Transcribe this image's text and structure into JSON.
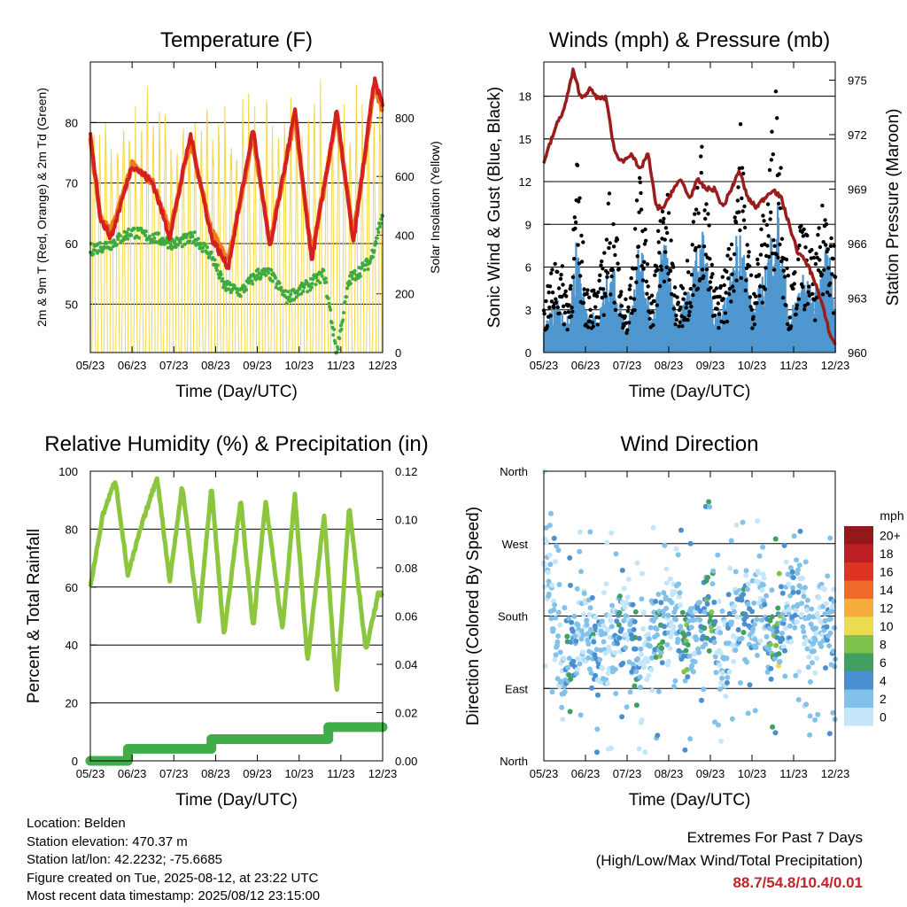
{
  "chart_data": [
    {
      "type": "line",
      "title": "Temperature (F)",
      "xlabel": "Time (Day/UTC)",
      "ylabel": "2m & 9m T (Red, Orange) & 2m Td (Green)",
      "ylabel_right": "Solar Insolation (Yellow)",
      "x_ticks": [
        "05/23",
        "06/23",
        "07/23",
        "08/23",
        "09/23",
        "10/23",
        "11/23",
        "12/23"
      ],
      "y_ticks": [
        50,
        60,
        70,
        80
      ],
      "y_right_ticks": [
        0,
        200,
        400,
        600,
        800
      ],
      "ylim": [
        42,
        90
      ],
      "y_right_lim": [
        0,
        990
      ],
      "xlim": [
        0,
        7
      ],
      "grid": true,
      "series": [
        {
          "label": "2m T",
          "color": "#d42020",
          "x": [
            0,
            0.25,
            0.5,
            1.0,
            1.5,
            1.9,
            2.4,
            2.9,
            3.3,
            3.9,
            4.3,
            4.9,
            5.3,
            5.9,
            6.3,
            6.8,
            7.0
          ],
          "y": [
            78,
            64,
            61,
            73,
            70,
            61,
            78,
            61,
            56,
            79,
            59,
            82,
            57,
            82,
            60,
            87,
            83
          ]
        },
        {
          "label": "9m T",
          "color": "#f07a1a",
          "x": [
            0,
            0.25,
            0.5,
            1.0,
            1.5,
            1.9,
            2.4,
            2.9,
            3.3,
            3.9,
            4.3,
            4.9,
            5.3,
            5.9,
            6.3,
            6.8,
            7.0
          ],
          "y": [
            77,
            64,
            62,
            73,
            70,
            62,
            77,
            62,
            57,
            78,
            60,
            81,
            58,
            81,
            61,
            86,
            82
          ]
        },
        {
          "label": "2m Td",
          "color": "#3faa3f",
          "x": [
            0,
            0.5,
            1.0,
            1.5,
            2.0,
            2.5,
            2.9,
            3.2,
            3.6,
            4.0,
            4.3,
            4.7,
            5.2,
            5.6,
            5.9,
            6.2,
            6.7,
            7.0
          ],
          "y": [
            59,
            60,
            62,
            61,
            60,
            61,
            58,
            53,
            52,
            55,
            55,
            51,
            53,
            55,
            42,
            54,
            57,
            65
          ]
        },
        {
          "label": "Solar Insolation",
          "axis": "right",
          "color": "#f5d742",
          "x": [
            0,
            0.5,
            1.0,
            1.5,
            2.0,
            2.5,
            3.0,
            3.5,
            4.0,
            4.5,
            5.0,
            5.5,
            6.0,
            6.5,
            7.0
          ],
          "y": [
            0,
            850,
            0,
            750,
            0,
            880,
            0,
            820,
            0,
            840,
            0,
            870,
            0,
            990,
            0
          ]
        }
      ]
    },
    {
      "type": "scatter",
      "title": "Winds (mph) & Pressure (mb)",
      "xlabel": "Time (Day/UTC)",
      "ylabel": "Sonic Wind & Gust (Blue, Black)",
      "ylabel_right": "Station Pressure (Maroon)",
      "x_ticks": [
        "05/23",
        "06/23",
        "07/23",
        "08/23",
        "09/23",
        "10/23",
        "11/23",
        "12/23"
      ],
      "y_ticks": [
        0,
        3,
        6,
        9,
        12,
        15,
        18
      ],
      "y_right_ticks": [
        960,
        963,
        966,
        969,
        972,
        975
      ],
      "ylim": [
        0,
        20.4
      ],
      "y_right_lim": [
        960,
        976
      ],
      "xlim": [
        0,
        7
      ],
      "grid": true,
      "series": [
        {
          "label": "Sonic Wind",
          "color": "#4f97cf",
          "x": [
            0,
            0.3,
            0.6,
            0.8,
            1.0,
            1.3,
            1.6,
            1.8,
            2.0,
            2.3,
            2.6,
            2.9,
            3.2,
            3.5,
            3.8,
            4.1,
            4.4,
            4.7,
            5.0,
            5.3,
            5.6,
            5.9,
            6.2,
            6.5,
            6.8,
            7.0
          ],
          "y": [
            1.5,
            3.5,
            2.0,
            7.5,
            3.0,
            2.0,
            6.0,
            3.5,
            1.5,
            7.0,
            2.0,
            7.5,
            2.0,
            4.0,
            8.0,
            2.0,
            3.5,
            8.5,
            2.5,
            5.0,
            9.5,
            2.0,
            5.0,
            3.5,
            6.5,
            4.0
          ]
        },
        {
          "label": "Gust",
          "color": "#000000",
          "x": [
            0,
            0.3,
            0.6,
            0.8,
            1.0,
            1.3,
            1.6,
            1.8,
            2.0,
            2.3,
            2.6,
            2.9,
            3.2,
            3.5,
            3.8,
            4.1,
            4.4,
            4.7,
            5.0,
            5.3,
            5.6,
            5.9,
            6.2,
            6.5,
            6.8,
            7.0
          ],
          "y": [
            3.0,
            7.0,
            4.0,
            12.5,
            5.0,
            4.0,
            11.0,
            6.5,
            3.0,
            12.0,
            4.0,
            12.5,
            3.5,
            7.0,
            14.0,
            4.0,
            6.0,
            16.0,
            4.5,
            9.5,
            18.3,
            3.5,
            9.0,
            6.0,
            11.5,
            7.0
          ]
        },
        {
          "label": "Station Pressure",
          "axis": "right",
          "color": "#9b1c1c",
          "x": [
            0,
            0.3,
            0.5,
            0.7,
            0.9,
            1.1,
            1.3,
            1.5,
            1.7,
            1.9,
            2.1,
            2.3,
            2.5,
            2.7,
            2.9,
            3.1,
            3.3,
            3.5,
            3.7,
            3.9,
            4.1,
            4.3,
            4.5,
            4.7,
            4.9,
            5.1,
            5.3,
            5.5,
            5.7,
            5.9,
            6.1,
            6.3,
            6.5,
            6.7,
            6.9,
            7.0
          ],
          "y": [
            970.5,
            972.5,
            973.5,
            975.5,
            974,
            974.5,
            974,
            974,
            971,
            970.5,
            971,
            970,
            971,
            968,
            968,
            969,
            969.5,
            968.5,
            969.5,
            969,
            969,
            968,
            969,
            970,
            968.5,
            968,
            968.5,
            969,
            968.5,
            967,
            965.5,
            965,
            964,
            962.5,
            960.8,
            960.5
          ]
        }
      ]
    },
    {
      "type": "line",
      "title": "Relative Humidity (%) & Precipitation (in)",
      "xlabel": "Time (Day/UTC)",
      "ylabel": "Percent & Total Rainfall",
      "x_ticks": [
        "05/23",
        "06/23",
        "07/23",
        "08/23",
        "09/23",
        "10/23",
        "11/23",
        "12/23"
      ],
      "y_ticks": [
        0,
        20,
        40,
        60,
        80,
        100
      ],
      "y_right_ticks": [
        "0.00",
        "0.02",
        "0.04",
        "0.06",
        "0.08",
        "0.10",
        "0.12"
      ],
      "ylim": [
        0,
        100
      ],
      "y_right_lim": [
        0,
        0.12
      ],
      "xlim": [
        0,
        7
      ],
      "grid": true,
      "series": [
        {
          "label": "Relative Humidity",
          "color": "#8cc63f",
          "x": [
            0,
            0.3,
            0.6,
            0.9,
            1.2,
            1.6,
            1.9,
            2.2,
            2.6,
            2.9,
            3.2,
            3.6,
            3.9,
            4.2,
            4.6,
            4.9,
            5.2,
            5.6,
            5.9,
            6.2,
            6.6,
            6.9,
            7.0
          ],
          "y": [
            60,
            85,
            97,
            64,
            80,
            98,
            62,
            95,
            48,
            95,
            43,
            90,
            46,
            90,
            45,
            92,
            34,
            85,
            24,
            88,
            38,
            58,
            57
          ]
        },
        {
          "label": "Total Precipitation",
          "axis": "right",
          "color": "#3fae49",
          "x": [
            0,
            0.9,
            0.9,
            2.9,
            2.9,
            5.7,
            5.7,
            7.0
          ],
          "y": [
            0.0,
            0.0,
            0.005,
            0.005,
            0.009,
            0.009,
            0.014,
            0.014
          ]
        }
      ]
    },
    {
      "type": "scatter",
      "title": "Wind Direction",
      "xlabel": "Time (Day/UTC)",
      "ylabel": "Direction (Colored By Speed)",
      "x_ticks": [
        "05/23",
        "06/23",
        "07/23",
        "08/23",
        "09/23",
        "10/23",
        "11/23",
        "12/23"
      ],
      "y_ticks": [
        "North",
        "East",
        "South",
        "West",
        "North"
      ],
      "ylim": [
        0,
        360
      ],
      "xlim": [
        0,
        7
      ],
      "grid": true,
      "colorbar": {
        "title": "mph",
        "labels": [
          "0",
          "2",
          "4",
          "6",
          "8",
          "10",
          "12",
          "14",
          "16",
          "18",
          "20+"
        ],
        "colors": [
          "#c5e6f8",
          "#82c2ea",
          "#4a8fcf",
          "#3fa060",
          "#7dc24a",
          "#eadc4e",
          "#f7ac3e",
          "#ee6a2a",
          "#df3424",
          "#be1f24",
          "#921a1c"
        ]
      },
      "series": [
        {
          "label": "Wind direction",
          "x": [
            0,
            0.2,
            0.4,
            0.6,
            0.8,
            1.0,
            1.2,
            1.4,
            1.6,
            1.8,
            2.0,
            2.2,
            2.4,
            2.6,
            2.8,
            3.0,
            3.2,
            3.4,
            3.6,
            3.8,
            4.0,
            4.2,
            4.4,
            4.6,
            4.8,
            5.0,
            5.2,
            5.4,
            5.6,
            5.8,
            6.0,
            6.2,
            6.4,
            6.6,
            6.8,
            7.0
          ],
          "y": [
            260,
            190,
            120,
            140,
            150,
            170,
            140,
            120,
            150,
            160,
            170,
            130,
            140,
            155,
            170,
            180,
            190,
            140,
            150,
            175,
            195,
            130,
            140,
            170,
            200,
            175,
            220,
            145,
            150,
            180,
            210,
            200,
            140,
            180,
            170,
            150
          ],
          "speed": [
            1,
            4,
            3,
            7,
            3,
            2,
            6,
            3,
            1,
            7,
            2,
            7,
            1,
            3,
            8,
            2,
            3,
            8,
            3,
            5,
            9,
            2,
            5,
            3,
            6,
            4,
            2,
            6,
            10,
            3,
            5,
            3,
            4,
            2,
            5,
            3
          ]
        }
      ]
    }
  ],
  "info": {
    "location": "Location: Belden",
    "elevation": "Station elevation: 470.37 m",
    "latlon": "Station lat/lon: 42.2232; -75.6685",
    "created": "Figure created on Tue, 2025-08-12, at 23:22 UTC",
    "timestamp": "Most recent data timestamp: 2025/08/12 23:15:00"
  },
  "extremes": {
    "line1": "Extremes For Past 7 Days",
    "line2": "(High/Low/Max Wind/Total Precipitation)",
    "values": "88.7/54.8/10.4/0.01"
  }
}
